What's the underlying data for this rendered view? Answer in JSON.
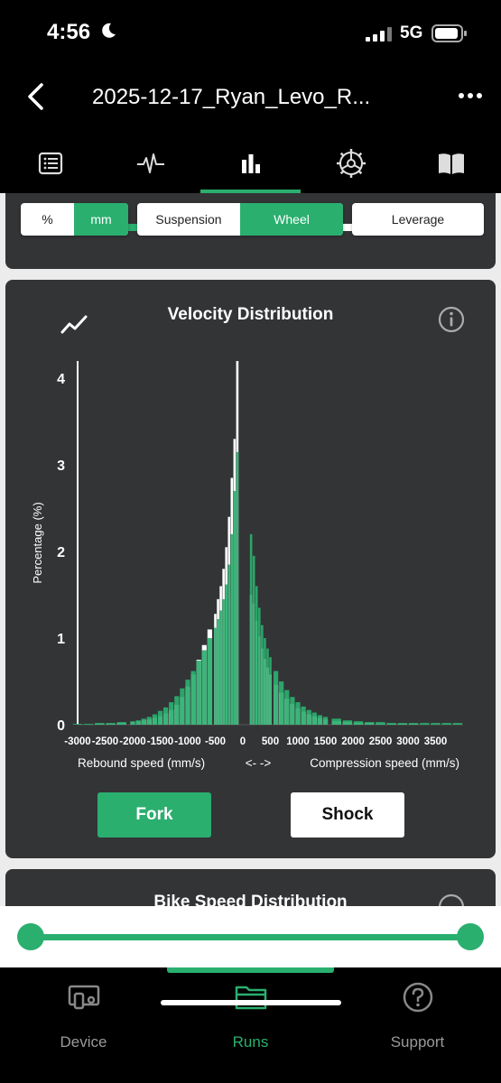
{
  "status_bar": {
    "time": "4:56",
    "network": "5G"
  },
  "header": {
    "title": "2025-12-17_Ryan_Levo_R..."
  },
  "tabs": [
    {
      "icon": "list-icon"
    },
    {
      "icon": "waveform-icon"
    },
    {
      "icon": "bar-chart-icon",
      "active": true
    },
    {
      "icon": "gear-wheel-icon"
    },
    {
      "icon": "book-icon"
    }
  ],
  "controls": {
    "unit_percent": "%",
    "unit_mm": "mm",
    "suspension": "Suspension",
    "wheel": "Wheel",
    "leverage": "Leverage"
  },
  "velocity_card": {
    "title": "Velocity Distribution",
    "fork_button": "Fork",
    "shock_button": "Shock"
  },
  "next_card": {
    "title": "Bike Speed Distribution"
  },
  "bottom_nav": {
    "device": "Device",
    "runs": "Runs",
    "support": "Support"
  },
  "colors": {
    "accent": "#2aaf6f",
    "card": "#333436"
  },
  "chart_data": {
    "type": "bar",
    "title": "Velocity Distribution",
    "ylabel": "Percentage (%)",
    "xlabel_left": "Rebound speed (mm/s)",
    "xlabel_middle": "<-   ->",
    "xlabel_right": "Compression speed (mm/s)",
    "xlim": [
      -3000,
      4000
    ],
    "ylim": [
      0,
      4.2
    ],
    "y_ticks": [
      0,
      1,
      2,
      3,
      4
    ],
    "x_ticks": [
      -3000,
      -2500,
      -2000,
      -1500,
      -1000,
      -500,
      0,
      500,
      1000,
      1500,
      2000,
      2500,
      3000,
      3500
    ],
    "x_tick_labels": [
      "-3000",
      "-2500",
      "-2000",
      "-1500",
      "-1000",
      "-500",
      "0",
      "500",
      "1000",
      "1500",
      "2000",
      "2500",
      "3000",
      "3500"
    ],
    "series": [
      {
        "name": "Fork",
        "color": "#2aaf6f",
        "x": [
          -3000,
          -2800,
          -2600,
          -2400,
          -2200,
          -2000,
          -1900,
          -1800,
          -1700,
          -1600,
          -1500,
          -1400,
          -1300,
          -1200,
          -1100,
          -1000,
          -900,
          -800,
          -700,
          -600,
          -500,
          -450,
          -400,
          -350,
          -300,
          -250,
          -200,
          -150,
          -100,
          -50,
          150,
          200,
          250,
          300,
          350,
          400,
          450,
          500,
          600,
          700,
          800,
          900,
          1000,
          1100,
          1200,
          1300,
          1400,
          1500,
          1700,
          1900,
          2100,
          2300,
          2500,
          2700,
          2900,
          3100,
          3300,
          3500,
          3700,
          3900
        ],
        "values": [
          0.01,
          0.01,
          0.02,
          0.02,
          0.03,
          0.04,
          0.05,
          0.07,
          0.09,
          0.12,
          0.16,
          0.2,
          0.26,
          0.33,
          0.42,
          0.52,
          0.62,
          0.74,
          0.86,
          1.0,
          1.12,
          1.22,
          1.32,
          1.45,
          1.62,
          1.85,
          2.2,
          2.7,
          3.15,
          0.0,
          2.2,
          1.95,
          1.6,
          1.35,
          1.15,
          1.0,
          0.88,
          0.78,
          0.62,
          0.5,
          0.4,
          0.32,
          0.26,
          0.21,
          0.17,
          0.14,
          0.11,
          0.09,
          0.07,
          0.05,
          0.04,
          0.03,
          0.03,
          0.02,
          0.02,
          0.02,
          0.02,
          0.02,
          0.02,
          0.02
        ]
      },
      {
        "name": "Shock",
        "color": "#ffffff",
        "x": [
          -3000,
          -2800,
          -2600,
          -2400,
          -2200,
          -2000,
          -1900,
          -1800,
          -1700,
          -1600,
          -1500,
          -1400,
          -1300,
          -1200,
          -1100,
          -1000,
          -900,
          -800,
          -700,
          -600,
          -500,
          -450,
          -400,
          -350,
          -300,
          -250,
          -200,
          -150,
          -100,
          -50,
          150,
          200,
          250,
          300,
          350,
          400,
          450,
          500,
          600,
          700,
          800,
          900,
          1000,
          1100,
          1200,
          1300,
          1400,
          1500,
          1700,
          1900,
          2100,
          2300,
          2500,
          2700,
          2900,
          3100,
          3300,
          3500,
          3700,
          3900
        ],
        "values": [
          0.0,
          0.0,
          0.01,
          0.01,
          0.02,
          0.03,
          0.04,
          0.05,
          0.06,
          0.08,
          0.1,
          0.13,
          0.17,
          0.23,
          0.32,
          0.44,
          0.58,
          0.75,
          0.92,
          1.1,
          1.28,
          1.45,
          1.6,
          1.8,
          2.05,
          2.4,
          2.85,
          3.3,
          4.2,
          0.0,
          1.5,
          1.4,
          1.2,
          1.02,
          0.88,
          0.76,
          0.66,
          0.58,
          0.46,
          0.37,
          0.3,
          0.24,
          0.19,
          0.15,
          0.12,
          0.1,
          0.08,
          0.06,
          0.04,
          0.03,
          0.02,
          0.02,
          0.01,
          0.01,
          0.01,
          0.01,
          0.0,
          0.0,
          0.0,
          0.0
        ]
      }
    ]
  }
}
